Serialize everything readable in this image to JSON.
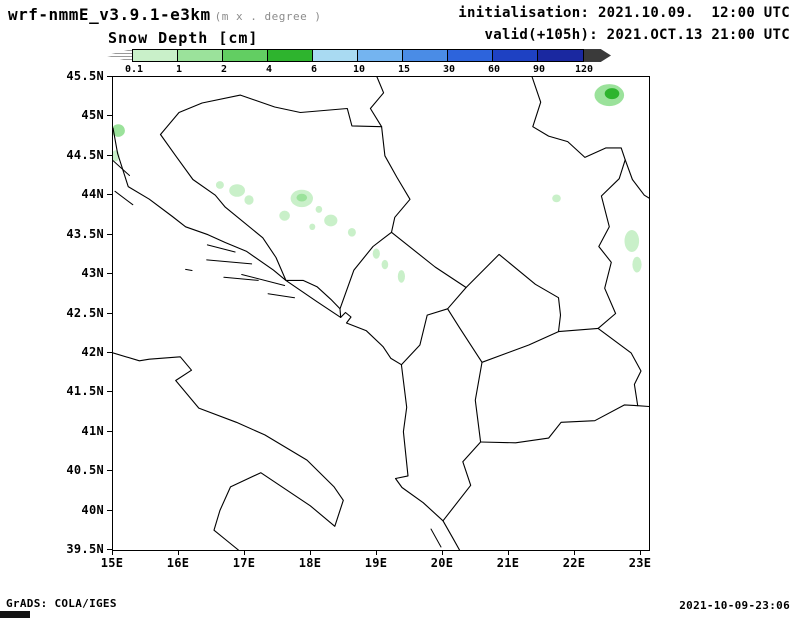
{
  "header": {
    "model_title": "wrf-nmmE_v3.9.1-e3km",
    "model_subtitle": "(m x . degree )",
    "field_title": "Snow Depth [cm]",
    "init_line": "initialisation: 2021.10.09.  12:00 UTC",
    "valid_line": "valid(+105h): 2021.OCT.13 21:00 UTC"
  },
  "footer": {
    "credit": "GrADS: COLA/IGES",
    "generated": "2021-10-09-23:06"
  },
  "chart_data": {
    "type": "heatmap",
    "title": "Snow Depth [cm]",
    "units": "cm",
    "projection": "lat-lon",
    "region": "Balkans / Adriatic",
    "x_axis": {
      "ticks": [
        "15E",
        "16E",
        "17E",
        "18E",
        "19E",
        "20E",
        "21E",
        "22E",
        "23E"
      ],
      "range_deg_e": [
        15,
        23.12
      ],
      "grid": false
    },
    "y_axis": {
      "ticks": [
        "45.5N",
        "45N",
        "44.5N",
        "44N",
        "43.5N",
        "43N",
        "42.5N",
        "42N",
        "41.5N",
        "41N",
        "40.5N",
        "40N",
        "39.5N"
      ],
      "range_deg_n": [
        39.5,
        45.5
      ],
      "grid": false
    },
    "colorbar": {
      "levels": [
        "0.1",
        "1",
        "2",
        "4",
        "6",
        "10",
        "15",
        "30",
        "60",
        "90",
        "120"
      ],
      "colors": [
        "#ffffff",
        "#c9f0c9",
        "#9be29b",
        "#62ce62",
        "#2eb42e",
        "#a9daf2",
        "#74b4f0",
        "#4a8ce6",
        "#2d64dc",
        "#1e41c3",
        "#1a28a0",
        "#3a3a3a"
      ],
      "position": "top-horizontal"
    },
    "snow_patches": [
      {
        "lon": 22.52,
        "lat": 45.27,
        "w": 0.45,
        "h": 0.28,
        "ci": 2
      },
      {
        "lon": 22.56,
        "lat": 45.29,
        "w": 0.22,
        "h": 0.14,
        "ci": 4
      },
      {
        "lon": 15.08,
        "lat": 44.82,
        "w": 0.2,
        "h": 0.16,
        "ci": 2
      },
      {
        "lon": 15.04,
        "lat": 44.5,
        "w": 0.12,
        "h": 0.14,
        "ci": 1
      },
      {
        "lon": 16.88,
        "lat": 44.06,
        "w": 0.24,
        "h": 0.16,
        "ci": 1
      },
      {
        "lon": 16.62,
        "lat": 44.13,
        "w": 0.12,
        "h": 0.1,
        "ci": 1
      },
      {
        "lon": 17.06,
        "lat": 43.94,
        "w": 0.14,
        "h": 0.12,
        "ci": 1
      },
      {
        "lon": 17.86,
        "lat": 43.96,
        "w": 0.34,
        "h": 0.22,
        "ci": 1
      },
      {
        "lon": 17.86,
        "lat": 43.97,
        "w": 0.16,
        "h": 0.1,
        "ci": 2
      },
      {
        "lon": 17.6,
        "lat": 43.74,
        "w": 0.16,
        "h": 0.13,
        "ci": 1
      },
      {
        "lon": 18.12,
        "lat": 43.82,
        "w": 0.1,
        "h": 0.09,
        "ci": 1
      },
      {
        "lon": 18.02,
        "lat": 43.6,
        "w": 0.09,
        "h": 0.08,
        "ci": 1
      },
      {
        "lon": 18.3,
        "lat": 43.68,
        "w": 0.2,
        "h": 0.15,
        "ci": 1
      },
      {
        "lon": 18.62,
        "lat": 43.53,
        "w": 0.12,
        "h": 0.11,
        "ci": 1
      },
      {
        "lon": 18.99,
        "lat": 43.26,
        "w": 0.11,
        "h": 0.13,
        "ci": 1
      },
      {
        "lon": 19.12,
        "lat": 43.12,
        "w": 0.1,
        "h": 0.12,
        "ci": 1
      },
      {
        "lon": 19.37,
        "lat": 42.97,
        "w": 0.11,
        "h": 0.16,
        "ci": 1
      },
      {
        "lon": 21.72,
        "lat": 43.96,
        "w": 0.13,
        "h": 0.1,
        "ci": 1
      },
      {
        "lon": 22.86,
        "lat": 43.42,
        "w": 0.22,
        "h": 0.28,
        "ci": 1
      },
      {
        "lon": 22.94,
        "lat": 43.12,
        "w": 0.14,
        "h": 0.2,
        "ci": 1
      }
    ]
  }
}
